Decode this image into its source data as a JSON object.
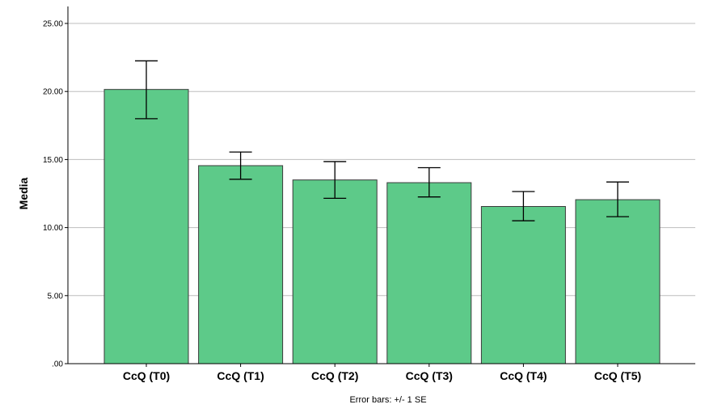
{
  "chart_data": {
    "type": "bar",
    "categories": [
      "CcQ (T0)",
      "CcQ (T1)",
      "CcQ (T2)",
      "CcQ (T3)",
      "CcQ (T4)",
      "CcQ (T5)"
    ],
    "values": [
      20.15,
      14.55,
      13.5,
      13.3,
      11.55,
      12.05
    ],
    "error_low": [
      18.0,
      13.55,
      12.15,
      12.25,
      10.5,
      10.8
    ],
    "error_high": [
      22.25,
      15.55,
      14.85,
      14.4,
      12.65,
      13.35
    ],
    "ylabel": "Media",
    "xlabel": "",
    "ylim": [
      0,
      25
    ],
    "yticks": [
      0,
      5,
      10,
      15,
      20,
      25
    ],
    "ytick_labels": [
      ".00",
      "5.00",
      "10.00",
      "15.00",
      "20.00",
      "25.00"
    ],
    "grid": true,
    "bar_color": "#5DCA89",
    "note": "Error bars: +/- 1 SE"
  }
}
